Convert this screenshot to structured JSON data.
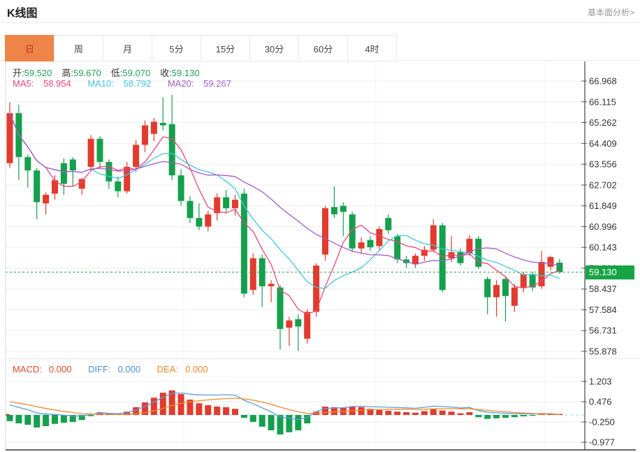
{
  "header": {
    "title": "K线图",
    "link": "基本面分析>"
  },
  "tabs": [
    {
      "label": "日",
      "name": "day",
      "active": true
    },
    {
      "label": "周",
      "name": "week",
      "active": false
    },
    {
      "label": "月",
      "name": "month",
      "active": false
    },
    {
      "label": "5分",
      "name": "5min",
      "active": false
    },
    {
      "label": "15分",
      "name": "15min",
      "active": false
    },
    {
      "label": "30分",
      "name": "30min",
      "active": false
    },
    {
      "label": "60分",
      "name": "60min",
      "active": false
    },
    {
      "label": "4时",
      "name": "4hour",
      "active": false
    }
  ],
  "ohlc": {
    "open_label": "开:",
    "open": "59.520",
    "high_label": "高:",
    "high": "59.670",
    "low_label": "低:",
    "low": "59.070",
    "close_label": "收:",
    "close": "59.130"
  },
  "ma": {
    "ma5_label": "MA5:",
    "ma5": "58.954",
    "ma10_label": "MA10:",
    "ma10": "58.792",
    "ma20_label": "MA20:",
    "ma20": "59.267"
  },
  "macd_info": {
    "macd_label": "MACD:",
    "macd": "0.000",
    "diff_label": "DIFF:",
    "diff": "0.000",
    "dea_label": "DEA:",
    "dea": "0.000"
  },
  "price_tag": "59.130",
  "colors": {
    "up": "#e23b2e",
    "down": "#14a04c",
    "ma5": "#ef4777",
    "ma10": "#3fc6e0",
    "ma20": "#a55bc6",
    "diff_line": "#5d9cdb",
    "dea_line": "#ef8c2d",
    "ohlc_value": "#1fa25a",
    "tag_bg": "#17a446",
    "dotted_line": "#2fa44c",
    "tab_active_bg": "#ee8447",
    "tab_active_text": "#cb4a28",
    "macd_label": "#e2452e",
    "diff_label": "#4a90d9",
    "dea_label": "#f0862a",
    "axis_text": "#333333",
    "grid": "#ededed",
    "vgrid": "#f0f2f5",
    "axis_line": "#444444"
  },
  "chart_data": {
    "type": "candlestick",
    "title": "K线图 (日)",
    "legend": [
      "MA5",
      "MA10",
      "MA20"
    ],
    "y_axis_ticks": [
      "66.968",
      "66.115",
      "65.262",
      "64.409",
      "63.556",
      "62.702",
      "61.849",
      "60.996",
      "60.143",
      "59.290",
      "58.437",
      "57.584",
      "56.731",
      "55.878"
    ],
    "ylim": [
      55.878,
      66.968
    ],
    "current_price": 59.13,
    "grid": true,
    "ma_periods": [
      5,
      10,
      20
    ],
    "candles": [
      [
        63.6,
        66.1,
        63.4,
        65.65
      ],
      [
        65.65,
        66.0,
        62.9,
        63.85
      ],
      [
        63.85,
        63.95,
        62.6,
        63.3
      ],
      [
        63.3,
        63.4,
        61.3,
        62.0
      ],
      [
        61.95,
        62.4,
        61.5,
        62.3
      ],
      [
        62.35,
        63.1,
        62.1,
        62.9
      ],
      [
        63.6,
        63.8,
        62.3,
        62.75
      ],
      [
        63.75,
        63.85,
        62.65,
        63.3
      ],
      [
        62.55,
        63.0,
        62.3,
        62.95
      ],
      [
        63.45,
        64.75,
        63.3,
        64.6
      ],
      [
        64.6,
        64.7,
        63.4,
        63.65
      ],
      [
        63.65,
        63.75,
        62.55,
        62.85
      ],
      [
        62.85,
        63.05,
        62.2,
        62.45
      ],
      [
        62.45,
        63.65,
        62.35,
        63.45
      ],
      [
        63.45,
        64.55,
        63.25,
        64.35
      ],
      [
        64.35,
        65.35,
        64.05,
        65.15
      ],
      [
        64.8,
        65.45,
        64.5,
        65.3
      ],
      [
        65.25,
        66.3,
        64.95,
        65.15
      ],
      [
        65.2,
        66.4,
        62.9,
        63.1
      ],
      [
        63.1,
        63.35,
        61.85,
        62.05
      ],
      [
        62.05,
        62.25,
        61.15,
        61.35
      ],
      [
        61.35,
        61.95,
        60.85,
        61.0
      ],
      [
        61.0,
        61.65,
        60.8,
        61.5
      ],
      [
        61.55,
        62.35,
        61.25,
        62.2
      ],
      [
        62.2,
        62.5,
        61.55,
        61.75
      ],
      [
        61.75,
        62.3,
        61.45,
        62.1
      ],
      [
        62.35,
        62.55,
        58.1,
        58.25
      ],
      [
        58.4,
        59.9,
        58.2,
        59.7
      ],
      [
        59.7,
        59.85,
        57.7,
        58.55
      ],
      [
        58.55,
        58.8,
        57.9,
        58.65
      ],
      [
        58.5,
        58.6,
        55.95,
        56.8
      ],
      [
        56.85,
        57.3,
        56.1,
        57.15
      ],
      [
        57.2,
        57.4,
        55.9,
        56.9
      ],
      [
        56.4,
        57.6,
        56.2,
        57.5
      ],
      [
        57.5,
        59.5,
        57.3,
        59.4
      ],
      [
        59.85,
        61.85,
        59.6,
        61.75
      ],
      [
        61.8,
        62.65,
        61.35,
        61.5
      ],
      [
        61.85,
        62.0,
        60.6,
        61.6
      ],
      [
        61.5,
        61.6,
        59.95,
        60.1
      ],
      [
        60.1,
        60.55,
        59.9,
        60.35
      ],
      [
        60.45,
        60.6,
        60.0,
        60.15
      ],
      [
        60.2,
        61.0,
        60.05,
        60.9
      ],
      [
        61.35,
        61.5,
        60.7,
        60.85
      ],
      [
        60.6,
        60.7,
        59.5,
        59.65
      ],
      [
        59.65,
        59.8,
        59.3,
        59.5
      ],
      [
        59.45,
        59.9,
        59.3,
        59.8
      ],
      [
        59.8,
        60.2,
        59.6,
        60.05
      ],
      [
        60.05,
        61.3,
        59.95,
        61.05
      ],
      [
        61.05,
        61.15,
        58.3,
        58.4
      ],
      [
        59.7,
        60.6,
        59.55,
        59.95
      ],
      [
        59.95,
        60.1,
        59.4,
        59.5
      ],
      [
        59.9,
        60.65,
        59.8,
        60.5
      ],
      [
        60.5,
        60.6,
        59.25,
        59.35
      ],
      [
        58.85,
        58.95,
        57.4,
        58.1
      ],
      [
        58.1,
        58.8,
        57.3,
        58.6
      ],
      [
        58.85,
        58.95,
        57.1,
        58.15
      ],
      [
        57.75,
        58.65,
        57.5,
        58.5
      ],
      [
        58.5,
        59.15,
        58.3,
        59.05
      ],
      [
        59.05,
        59.15,
        58.35,
        58.5
      ],
      [
        58.55,
        60.0,
        58.45,
        59.55
      ],
      [
        59.35,
        59.8,
        59.2,
        59.75
      ],
      [
        59.52,
        59.67,
        59.07,
        59.13
      ]
    ],
    "macd_panel": {
      "type": "bar",
      "y_axis_ticks": [
        "1.203",
        "0.476",
        "-0.250",
        "-0.977"
      ],
      "bars": [
        -0.22,
        -0.3,
        -0.35,
        -0.45,
        -0.4,
        -0.32,
        -0.28,
        -0.25,
        -0.18,
        -0.04,
        0.1,
        0.06,
        0.05,
        0.12,
        0.28,
        0.45,
        0.62,
        0.8,
        0.88,
        0.75,
        0.55,
        0.42,
        0.35,
        0.3,
        0.28,
        0.22,
        -0.1,
        -0.25,
        -0.42,
        -0.55,
        -0.7,
        -0.62,
        -0.55,
        -0.3,
        0.12,
        0.3,
        0.28,
        0.26,
        0.3,
        0.28,
        0.22,
        0.18,
        0.15,
        0.12,
        0.1,
        0.08,
        0.14,
        0.2,
        0.16,
        0.12,
        0.06,
        0.1,
        -0.08,
        -0.14,
        -0.12,
        -0.1,
        -0.08,
        -0.05,
        -0.03,
        0.02,
        0.03,
        0.0
      ]
    }
  }
}
